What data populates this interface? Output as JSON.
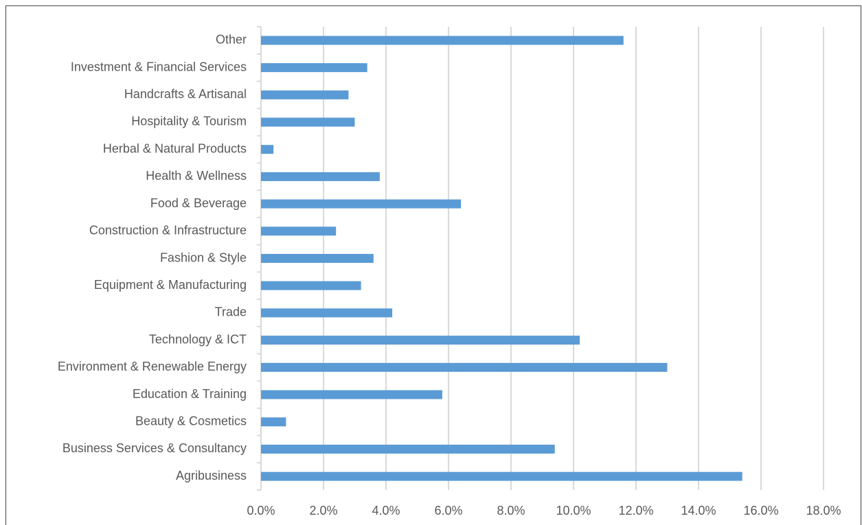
{
  "chart_data": {
    "type": "bar",
    "orientation": "horizontal",
    "categories": [
      "Agribusiness",
      "Business Services & Consultancy",
      "Beauty & Cosmetics",
      "Education & Training",
      "Environment & Renewable Energy",
      "Technology & ICT",
      "Trade",
      "Equipment & Manufacturing",
      "Fashion & Style",
      "Construction & Infrastructure",
      "Food & Beverage",
      "Health & Wellness",
      "Herbal & Natural Products",
      "Hospitality & Tourism",
      "Handcrafts & Artisanal",
      "Investment & Financial Services",
      "Other"
    ],
    "values": [
      15.4,
      9.4,
      0.8,
      5.8,
      13.0,
      10.2,
      4.2,
      3.2,
      3.6,
      2.4,
      6.4,
      3.8,
      0.4,
      3.0,
      2.8,
      3.4,
      11.6
    ],
    "color": "#5b9bd5",
    "xlim": [
      0,
      18
    ],
    "xticks": [
      {
        "value": 0,
        "label": "0.0%"
      },
      {
        "value": 2,
        "label": "2.0%"
      },
      {
        "value": 4,
        "label": "4.0%"
      },
      {
        "value": 6,
        "label": "6.0%"
      },
      {
        "value": 8,
        "label": "8.0%"
      },
      {
        "value": 10,
        "label": "10.0%"
      },
      {
        "value": 12,
        "label": "12.0%"
      },
      {
        "value": 14,
        "label": "14.0%"
      },
      {
        "value": 16,
        "label": "16.0%"
      },
      {
        "value": 18,
        "label": "18.0%"
      }
    ],
    "grid": true
  }
}
